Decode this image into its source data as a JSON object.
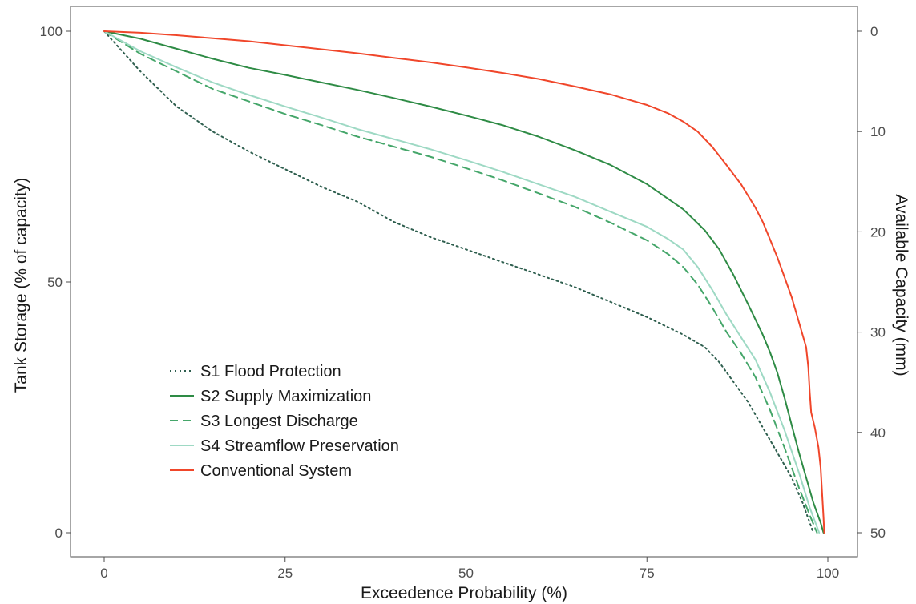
{
  "chart_data": {
    "type": "line",
    "title": "",
    "xlabel": "Exceedence Probability (%)",
    "ylabel": "Tank Storage (% of capacity)",
    "y2label": "Available Capacity (mm)",
    "xlim": [
      0,
      100
    ],
    "ylim": [
      0,
      100
    ],
    "y2lim": [
      50,
      0
    ],
    "x_ticks": [
      0,
      25,
      50,
      75,
      100
    ],
    "y_ticks": [
      0,
      50,
      100
    ],
    "y2_ticks": [
      0,
      10,
      20,
      30,
      40,
      50
    ],
    "grid": false,
    "legend_position": "bottom-left inside",
    "series": [
      {
        "name": "S1 Flood Protection",
        "color": "#2f5f4f",
        "dash": "dotted",
        "points": [
          [
            0,
            100
          ],
          [
            5,
            92
          ],
          [
            10,
            85
          ],
          [
            15,
            80
          ],
          [
            20,
            76
          ],
          [
            25,
            72.5
          ],
          [
            30,
            69
          ],
          [
            35,
            66
          ],
          [
            40,
            62
          ],
          [
            45,
            59
          ],
          [
            50,
            56.5
          ],
          [
            55,
            54
          ],
          [
            60,
            51.5
          ],
          [
            65,
            49
          ],
          [
            70,
            46
          ],
          [
            75,
            43
          ],
          [
            80,
            39.5
          ],
          [
            83,
            37
          ],
          [
            85,
            34
          ],
          [
            87,
            30
          ],
          [
            89,
            26
          ],
          [
            91,
            21
          ],
          [
            93,
            16
          ],
          [
            95,
            11
          ],
          [
            96.5,
            6
          ],
          [
            97.5,
            2
          ],
          [
            98,
            0
          ]
        ]
      },
      {
        "name": "S2 Supply Maximization",
        "color": "#2e8b45",
        "dash": "solid",
        "points": [
          [
            0,
            100
          ],
          [
            5,
            98.5
          ],
          [
            10,
            96.5
          ],
          [
            15,
            94.5
          ],
          [
            20,
            92.7
          ],
          [
            25,
            91.3
          ],
          [
            30,
            89.8
          ],
          [
            35,
            88.3
          ],
          [
            40,
            86.7
          ],
          [
            45,
            85
          ],
          [
            50,
            83.2
          ],
          [
            55,
            81.3
          ],
          [
            60,
            79
          ],
          [
            65,
            76.3
          ],
          [
            70,
            73.3
          ],
          [
            75,
            69.5
          ],
          [
            80,
            64.5
          ],
          [
            83,
            60.3
          ],
          [
            85,
            56.5
          ],
          [
            87,
            51.3
          ],
          [
            89,
            45.5
          ],
          [
            91,
            39.5
          ],
          [
            92,
            36
          ],
          [
            93,
            32
          ],
          [
            94,
            27
          ],
          [
            95,
            21.5
          ],
          [
            96,
            16
          ],
          [
            97,
            11
          ],
          [
            98,
            6
          ],
          [
            99,
            2
          ],
          [
            99.4,
            0
          ]
        ]
      },
      {
        "name": "S3 Longest Discharge",
        "color": "#45a66a",
        "dash": "dashed",
        "points": [
          [
            0,
            100
          ],
          [
            5,
            95.5
          ],
          [
            10,
            92
          ],
          [
            15,
            88.5
          ],
          [
            20,
            86
          ],
          [
            25,
            83.5
          ],
          [
            30,
            81.3
          ],
          [
            35,
            79
          ],
          [
            40,
            77
          ],
          [
            45,
            75
          ],
          [
            50,
            72.7
          ],
          [
            55,
            70.3
          ],
          [
            60,
            67.7
          ],
          [
            65,
            65
          ],
          [
            70,
            61.8
          ],
          [
            75,
            58.3
          ],
          [
            78,
            55.5
          ],
          [
            80,
            53
          ],
          [
            82,
            49.5
          ],
          [
            84,
            45
          ],
          [
            86,
            40
          ],
          [
            88,
            35.8
          ],
          [
            90,
            31
          ],
          [
            92,
            24.5
          ],
          [
            94,
            17
          ],
          [
            96,
            9
          ],
          [
            97.5,
            3.5
          ],
          [
            98.5,
            0
          ]
        ]
      },
      {
        "name": "S4 Streamflow Preservation",
        "color": "#9ed9c4",
        "dash": "solid",
        "points": [
          [
            0,
            100
          ],
          [
            5,
            96
          ],
          [
            10,
            92.8
          ],
          [
            15,
            89.8
          ],
          [
            20,
            87.3
          ],
          [
            25,
            85
          ],
          [
            30,
            82.8
          ],
          [
            35,
            80.5
          ],
          [
            40,
            78.5
          ],
          [
            45,
            76.5
          ],
          [
            50,
            74.3
          ],
          [
            55,
            72
          ],
          [
            60,
            69.5
          ],
          [
            65,
            67
          ],
          [
            70,
            64
          ],
          [
            75,
            61
          ],
          [
            78,
            58.5
          ],
          [
            80,
            56.5
          ],
          [
            82,
            53
          ],
          [
            84,
            48.5
          ],
          [
            86,
            43.5
          ],
          [
            88,
            39
          ],
          [
            90,
            34.5
          ],
          [
            92,
            28
          ],
          [
            94,
            20.5
          ],
          [
            96,
            12
          ],
          [
            97.5,
            5
          ],
          [
            98.8,
            0
          ]
        ]
      },
      {
        "name": "Conventional System",
        "color": "#f0462a",
        "dash": "solid",
        "points": [
          [
            0,
            100
          ],
          [
            5,
            99.7
          ],
          [
            10,
            99.2
          ],
          [
            15,
            98.6
          ],
          [
            20,
            98
          ],
          [
            25,
            97.2
          ],
          [
            30,
            96.4
          ],
          [
            35,
            95.6
          ],
          [
            40,
            94.7
          ],
          [
            45,
            93.8
          ],
          [
            50,
            92.8
          ],
          [
            55,
            91.7
          ],
          [
            60,
            90.5
          ],
          [
            65,
            89
          ],
          [
            70,
            87.4
          ],
          [
            75,
            85.3
          ],
          [
            78,
            83.6
          ],
          [
            80,
            82
          ],
          [
            82,
            80
          ],
          [
            84,
            77
          ],
          [
            86,
            73.3
          ],
          [
            88,
            69.5
          ],
          [
            90,
            64.8
          ],
          [
            91,
            62
          ],
          [
            92,
            58.5
          ],
          [
            93,
            55
          ],
          [
            94,
            51
          ],
          [
            95,
            47
          ],
          [
            96,
            42
          ],
          [
            97,
            37
          ],
          [
            97.3,
            33
          ],
          [
            97.5,
            28
          ],
          [
            97.7,
            24
          ],
          [
            98.2,
            21
          ],
          [
            98.7,
            17
          ],
          [
            99,
            13
          ],
          [
            99.2,
            8
          ],
          [
            99.4,
            3
          ],
          [
            99.5,
            0
          ]
        ]
      }
    ]
  }
}
